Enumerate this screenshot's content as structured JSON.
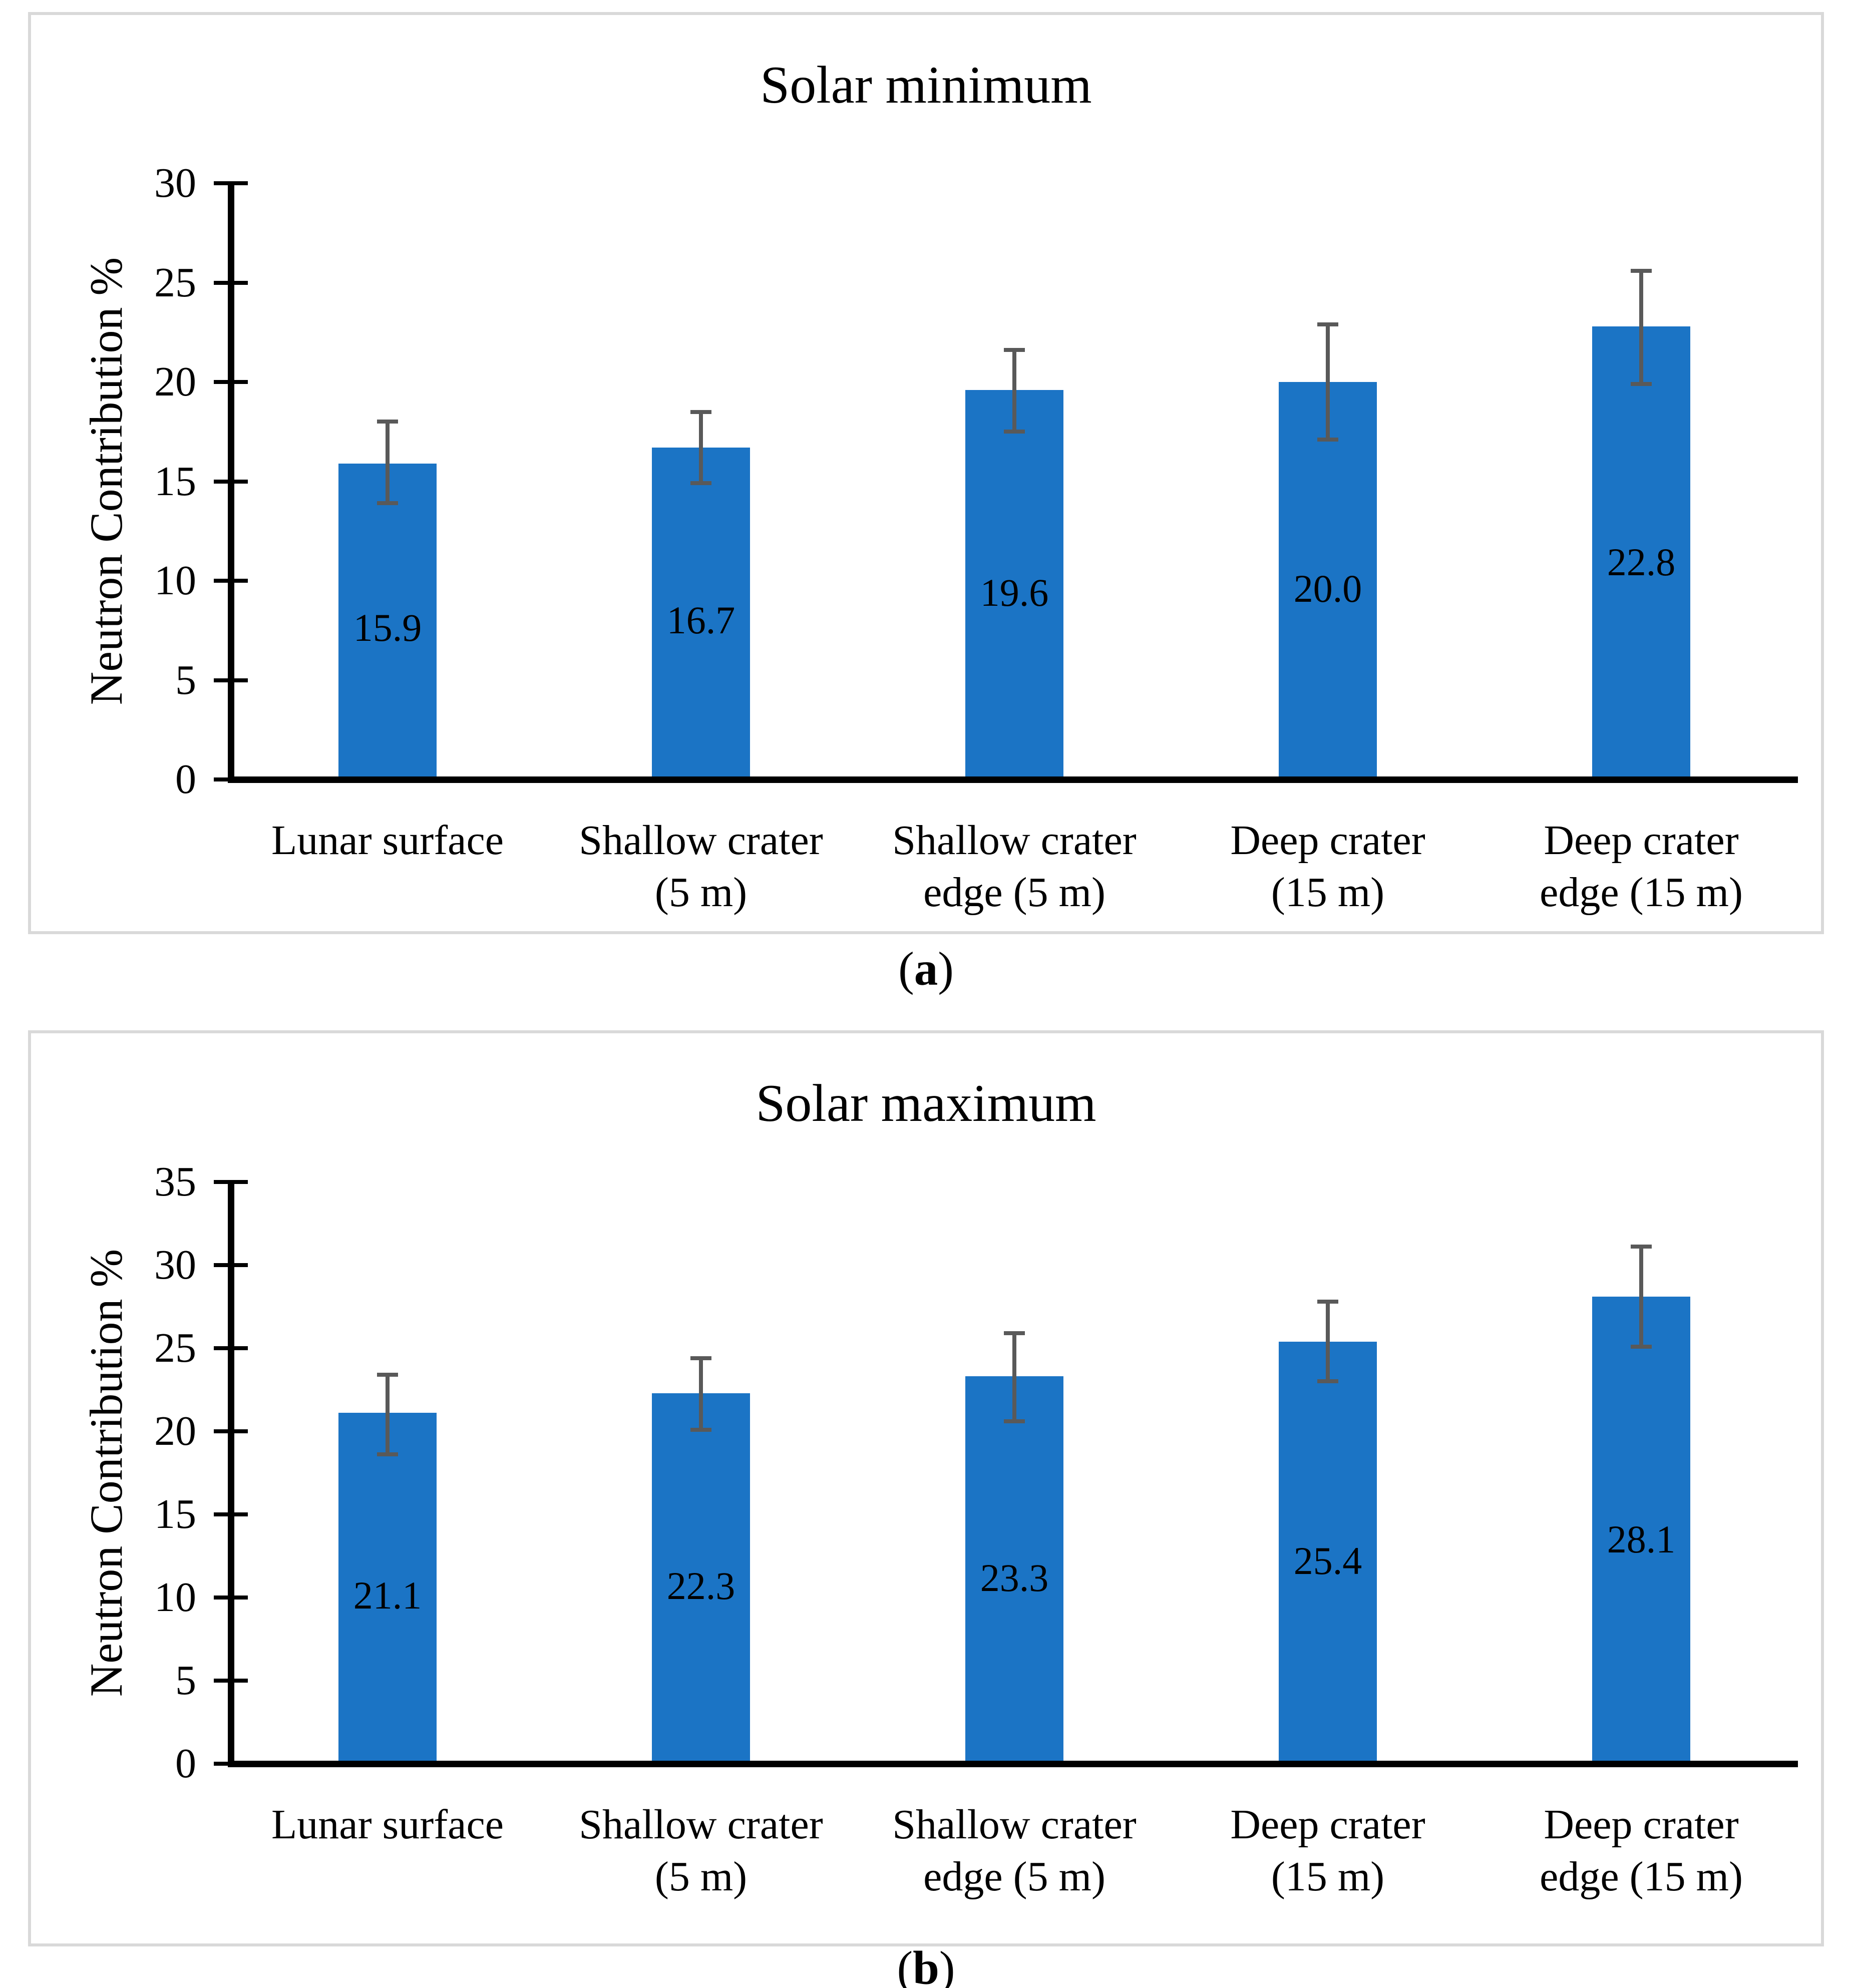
{
  "figure": {
    "captions": {
      "a": "(a)",
      "b": "(b)"
    },
    "colors": {
      "bar": "#1b74c5",
      "error_bar": "#595959",
      "panel_border": "#d9d9d9",
      "axis": "#000000",
      "background": "#ffffff"
    }
  },
  "chart_data": [
    {
      "type": "bar",
      "panel": "a",
      "title": "Solar minimum",
      "xlabel": "",
      "ylabel": "Neutron Contribution %",
      "categories": [
        [
          "Lunar surface"
        ],
        [
          "Shallow crater",
          "(5 m)"
        ],
        [
          "Shallow crater",
          "edge (5 m)"
        ],
        [
          "Deep crater",
          "(15 m)"
        ],
        [
          "Deep crater",
          "edge (15 m)"
        ]
      ],
      "values": [
        15.9,
        16.7,
        19.6,
        20.0,
        22.8
      ],
      "value_labels": [
        "15.9",
        "16.7",
        "19.6",
        "20.0",
        "22.8"
      ],
      "error_hi": [
        18.0,
        18.5,
        21.6,
        22.9,
        25.6
      ],
      "error_lo": [
        13.9,
        14.9,
        17.5,
        17.1,
        19.9
      ],
      "ylim": [
        0,
        30
      ],
      "yticks": [
        0,
        5,
        10,
        15,
        20,
        25,
        30
      ],
      "grid": false,
      "legend": null
    },
    {
      "type": "bar",
      "panel": "b",
      "title": "Solar maximum",
      "xlabel": "",
      "ylabel": "Neutron Contribution %",
      "categories": [
        [
          "Lunar surface"
        ],
        [
          "Shallow crater",
          "(5 m)"
        ],
        [
          "Shallow crater",
          "edge (5 m)"
        ],
        [
          "Deep crater",
          "(15 m)"
        ],
        [
          "Deep crater",
          "edge (15 m)"
        ]
      ],
      "values": [
        21.1,
        22.3,
        23.3,
        25.4,
        28.1
      ],
      "value_labels": [
        "21.1",
        "22.3",
        "23.3",
        "25.4",
        "28.1"
      ],
      "error_hi": [
        23.4,
        24.4,
        25.9,
        27.8,
        31.1
      ],
      "error_lo": [
        18.6,
        20.1,
        20.6,
        23.0,
        25.1
      ],
      "ylim": [
        0,
        35
      ],
      "yticks": [
        0,
        5,
        10,
        15,
        20,
        25,
        30,
        35
      ],
      "grid": false,
      "legend": null
    }
  ]
}
